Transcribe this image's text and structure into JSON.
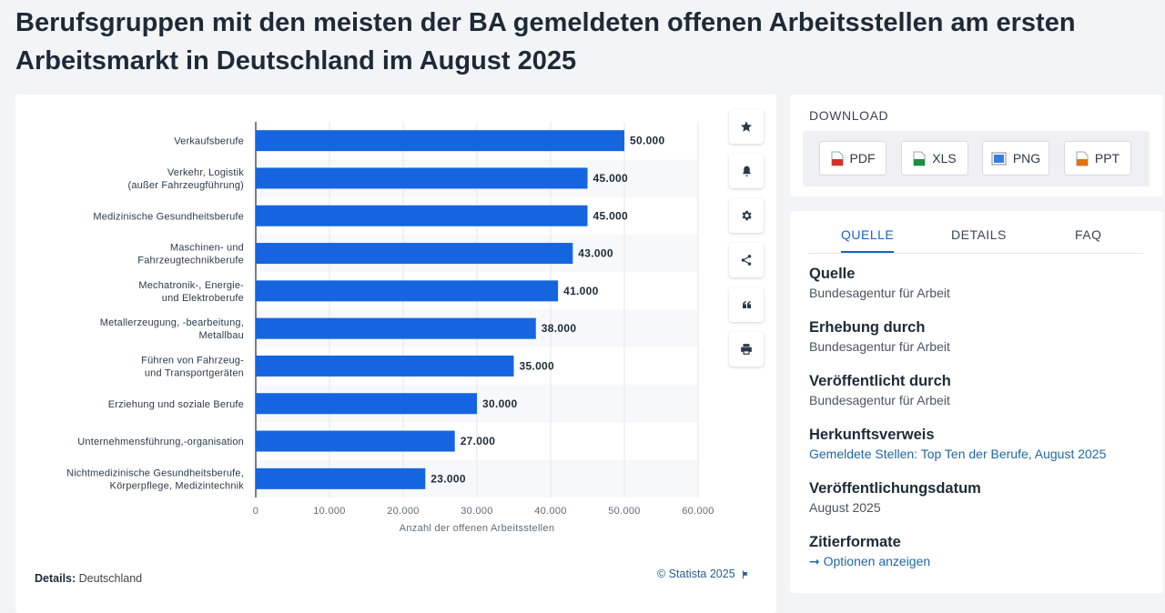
{
  "page": {
    "title": "Berufsgruppen mit den meisten der BA gemeldeten offenen Arbeitsstellen am ersten Arbeitsmarkt in Deutschland im August 2025"
  },
  "chart_data": {
    "type": "bar",
    "orientation": "horizontal",
    "categories": [
      "Verkaufsberufe",
      "Verkehr, Logistik\n(außer Fahrzeugführung)",
      "Medizinische Gesundheitsberufe",
      "Maschinen- und\nFahrzeugtechnikberufe",
      "Mechatronik-, Energie-\nund Elektroberufe",
      "Metallerzeugung, -bearbeitung,\nMetallbau",
      "Führen von Fahrzeug-\nund Transportgeräten",
      "Erziehung und soziale Berufe",
      "Unternehmensführung,-organisation",
      "Nichtmedizinische Gesundheitsberufe,\nKörperpflege, Medizintechnik"
    ],
    "values": [
      50000,
      45000,
      45000,
      43000,
      41000,
      38000,
      35000,
      30000,
      27000,
      23000
    ],
    "value_labels": [
      "50.000",
      "45.000",
      "45.000",
      "43.000",
      "41.000",
      "38.000",
      "35.000",
      "30.000",
      "27.000",
      "23.000"
    ],
    "xticks": [
      0,
      10000,
      20000,
      30000,
      40000,
      50000,
      60000
    ],
    "xtick_labels": [
      "0",
      "10.000",
      "20.000",
      "30.000",
      "40.000",
      "50.000",
      "60.000"
    ],
    "xlim": [
      0,
      60000
    ],
    "xlabel": "Anzahl der offenen Arbeitsstellen",
    "grid": true,
    "bar_color": "#1565e0"
  },
  "chart_footer": {
    "details_label": "Details:",
    "details_value": "Deutschland",
    "copyright": "© Statista 2025"
  },
  "tools": [
    "star-icon",
    "bell-icon",
    "gear-icon",
    "share-icon",
    "quote-icon",
    "print-icon"
  ],
  "download": {
    "label": "DOWNLOAD",
    "buttons": [
      {
        "label": "PDF",
        "color": "#d93025"
      },
      {
        "label": "XLS",
        "color": "#1e8e3e"
      },
      {
        "label": "PNG",
        "color": "#3b7ddd"
      },
      {
        "label": "PPT",
        "color": "#e8710a"
      }
    ]
  },
  "info": {
    "tabs": [
      "QUELLE",
      "DETAILS",
      "FAQ"
    ],
    "items": [
      {
        "heading": "Quelle",
        "value": "Bundesagentur für Arbeit"
      },
      {
        "heading": "Erhebung durch",
        "value": "Bundesagentur für Arbeit"
      },
      {
        "heading": "Veröffentlicht durch",
        "value": "Bundesagentur für Arbeit"
      },
      {
        "heading": "Herkunftsverweis",
        "link": "Gemeldete Stellen: Top Ten der Berufe, August 2025"
      },
      {
        "heading": "Veröffentlichungsdatum",
        "value": "August 2025"
      },
      {
        "heading": "Zitierformate",
        "link": "Optionen anzeigen"
      }
    ]
  }
}
